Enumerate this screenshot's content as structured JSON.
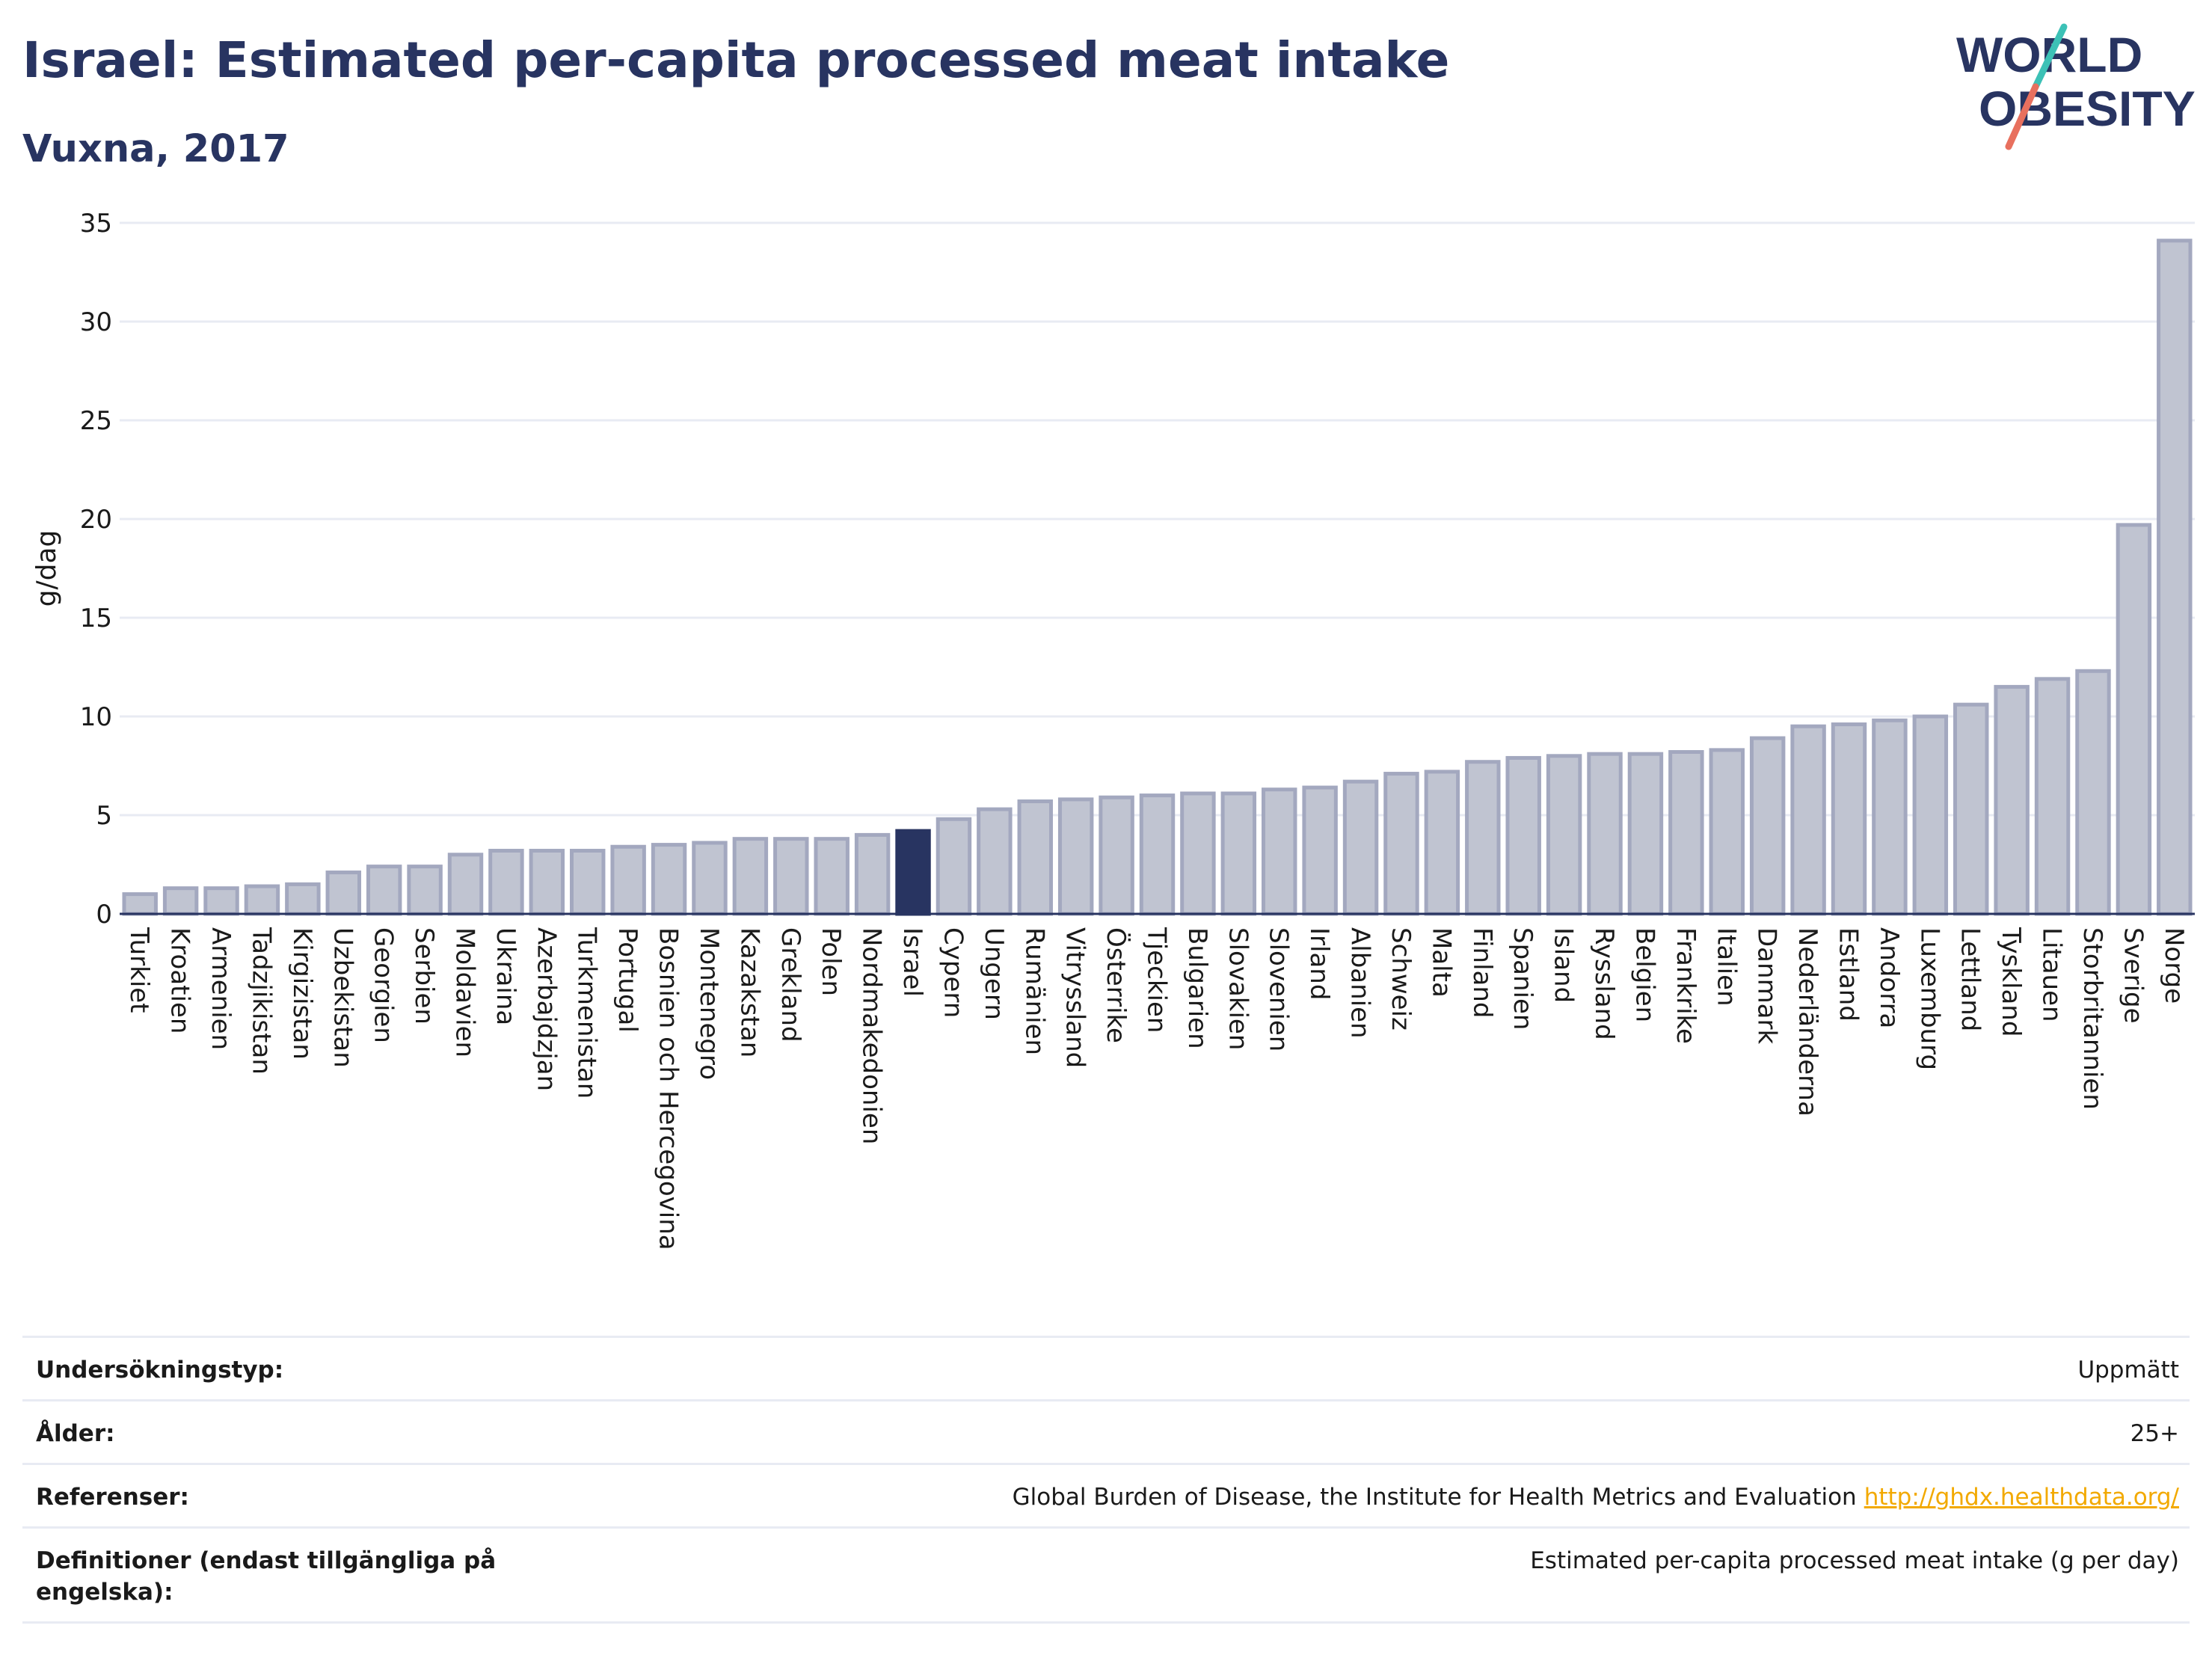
{
  "header": {
    "title": "Israel: Estimated per-capita processed meat intake",
    "subtitle": "Vuxna, 2017",
    "logo_line1": "WORLD",
    "logo_line2": "OBESITY"
  },
  "colors": {
    "bar": "#c0c4d1",
    "bar_border": "#a3a8bf",
    "highlight": "#283461",
    "logo_slash_teal": "#3cc1b6",
    "logo_slash_red": "#e8705e",
    "link": "#f2a900"
  },
  "chart_data": {
    "type": "bar",
    "title": "Israel: Estimated per-capita processed meat intake",
    "subtitle": "Vuxna, 2017",
    "xlabel": "",
    "ylabel": "g/dag",
    "ylim": [
      0,
      35
    ],
    "yticks": [
      0,
      5,
      10,
      15,
      20,
      25,
      30,
      35
    ],
    "grid": true,
    "highlight": "Israel",
    "categories": [
      "Turkiet",
      "Kroatien",
      "Armenien",
      "Tadzjikistan",
      "Kirgizistan",
      "Uzbekistan",
      "Georgien",
      "Serbien",
      "Moldavien",
      "Ukraina",
      "Azerbajdzjan",
      "Turkmenistan",
      "Portugal",
      "Bosnien och Hercegovina",
      "Montenegro",
      "Kazakstan",
      "Grekland",
      "Polen",
      "Nordmakedonien",
      "Israel",
      "Cypern",
      "Ungern",
      "Rumänien",
      "Vitryssland",
      "Österrike",
      "Tjeckien",
      "Bulgarien",
      "Slovakien",
      "Slovenien",
      "Irland",
      "Albanien",
      "Schweiz",
      "Malta",
      "Finland",
      "Spanien",
      "Island",
      "Ryssland",
      "Belgien",
      "Frankrike",
      "Italien",
      "Danmark",
      "Nederländerna",
      "Estland",
      "Andorra",
      "Luxemburg",
      "Lettland",
      "Tyskland",
      "Litauen",
      "Storbritannien",
      "Sverige",
      "Norge"
    ],
    "values": [
      1.0,
      1.3,
      1.3,
      1.4,
      1.5,
      2.1,
      2.4,
      2.4,
      3.0,
      3.2,
      3.2,
      3.2,
      3.4,
      3.5,
      3.6,
      3.8,
      3.8,
      3.8,
      4.0,
      4.2,
      4.8,
      5.3,
      5.7,
      5.8,
      5.9,
      6.0,
      6.1,
      6.1,
      6.3,
      6.4,
      6.7,
      7.1,
      7.2,
      7.7,
      7.9,
      8.0,
      8.1,
      8.1,
      8.2,
      8.3,
      8.9,
      9.5,
      9.6,
      9.8,
      10.0,
      10.6,
      11.5,
      11.9,
      12.3,
      19.7,
      34.1
    ]
  },
  "info": {
    "rows": [
      {
        "key": "Undersökningstyp:",
        "value": "Uppmätt",
        "link": ""
      },
      {
        "key": "Ålder:",
        "value": "25+",
        "link": ""
      },
      {
        "key": "Referenser:",
        "value": "Global Burden of Disease, the Institute for Health Metrics and Evaluation",
        "link": "http://ghdx.healthdata.org/"
      },
      {
        "key": "Definitioner (endast tillgängliga på engelska):",
        "value": "Estimated per-capita processed meat intake (g per day)",
        "link": ""
      }
    ]
  }
}
